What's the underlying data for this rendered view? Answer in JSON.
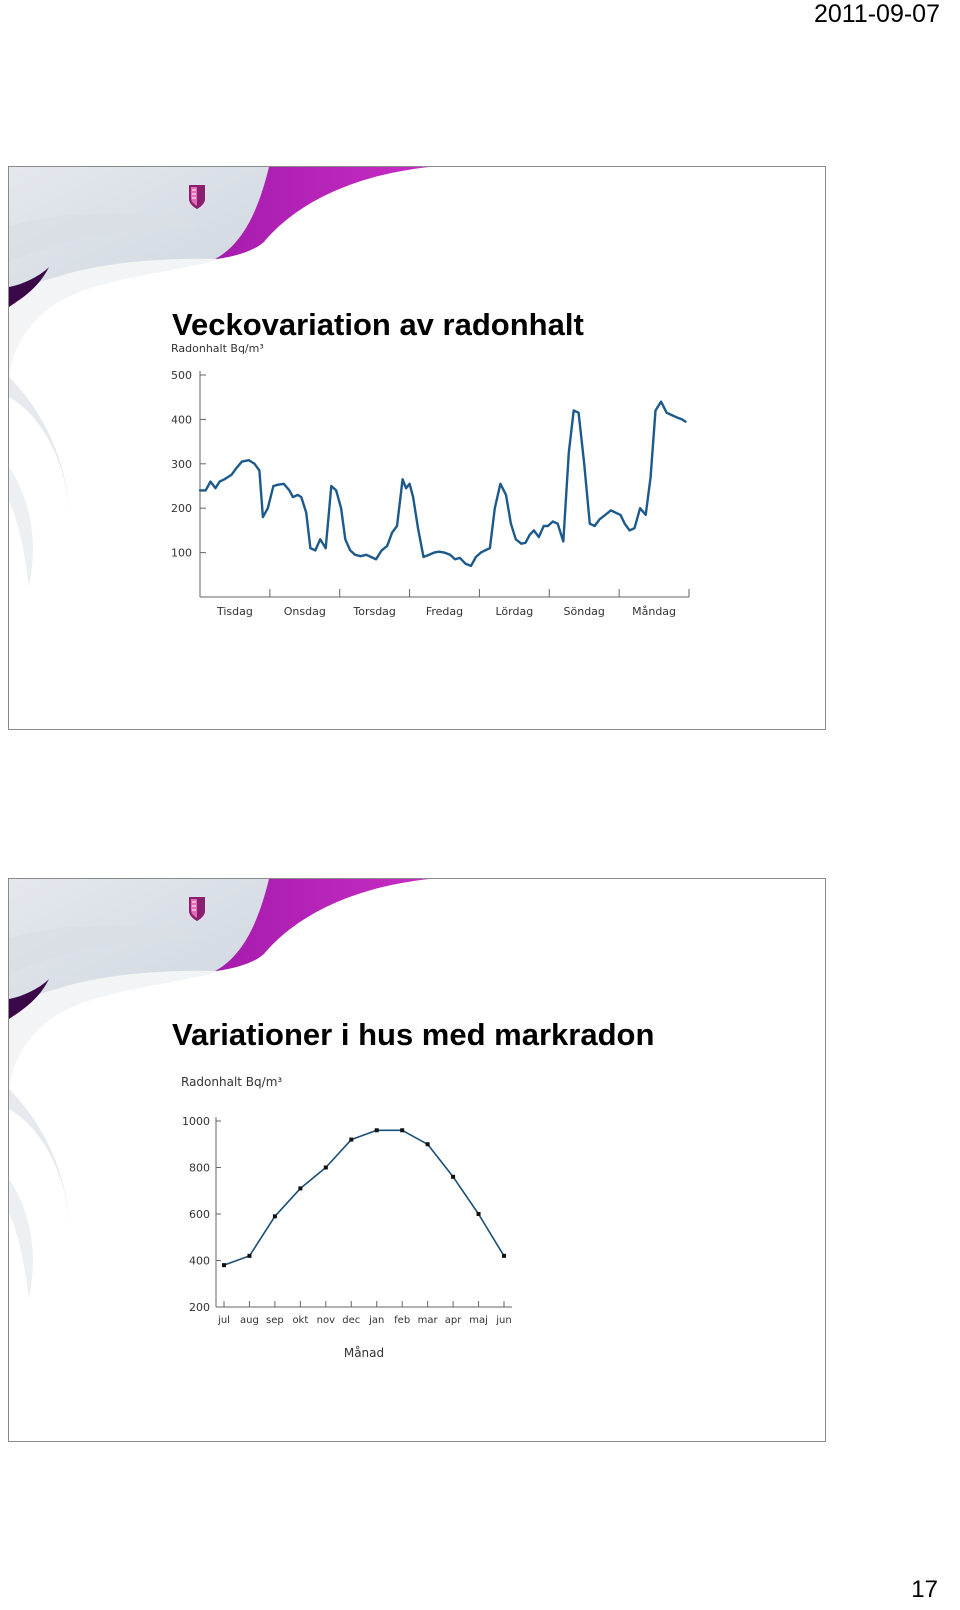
{
  "header": {
    "date": "2011-09-07"
  },
  "footer": {
    "page_number": "17"
  },
  "colors": {
    "accent_magenta": "#b219b8",
    "line_blue": "#1d5a8c",
    "dark_line": "#1b4f78",
    "marker": "#111111"
  },
  "slides": [
    {
      "title": "Veckovariation av radonhalt",
      "logo_icon": "shield-logo-icon"
    },
    {
      "title": "Variationer i hus med markradon",
      "logo_icon": "shield-logo-icon"
    }
  ],
  "chart_data": [
    {
      "type": "line",
      "title": "",
      "ylabel": "Radonhalt Bq/m³",
      "xlabel": "",
      "categories": [
        "Tisdag",
        "Onsdag",
        "Torsdag",
        "Fredag",
        "Lördag",
        "Söndag",
        "Måndag"
      ],
      "y_ticks": [
        "100",
        "200",
        "300",
        "400",
        "500"
      ],
      "ylim": [
        0,
        500
      ],
      "xlim": [
        0,
        7
      ],
      "series": [
        {
          "name": "",
          "x": [
            0,
            0.08,
            0.15,
            0.22,
            0.28,
            0.35,
            0.45,
            0.52,
            0.6,
            0.7,
            0.78,
            0.85,
            0.9,
            0.97,
            1.05,
            1.12,
            1.2,
            1.28,
            1.33,
            1.4,
            1.45,
            1.52,
            1.58,
            1.65,
            1.72,
            1.8,
            1.88,
            1.95,
            2.02,
            2.08,
            2.15,
            2.22,
            2.3,
            2.38,
            2.45,
            2.52,
            2.6,
            2.68,
            2.75,
            2.82,
            2.9,
            2.95,
            3.0,
            3.05,
            3.12,
            3.2,
            3.28,
            3.35,
            3.42,
            3.5,
            3.58,
            3.65,
            3.72,
            3.8,
            3.88,
            3.95,
            4.02,
            4.08,
            4.15,
            4.22,
            4.3,
            4.38,
            4.45,
            4.52,
            4.6,
            4.66,
            4.72,
            4.78,
            4.85,
            4.92,
            4.98,
            5.05,
            5.12,
            5.2,
            5.28,
            5.35,
            5.42,
            5.5,
            5.58,
            5.65,
            5.72,
            5.8,
            5.88,
            5.95,
            6.02,
            6.08,
            6.15,
            6.22,
            6.3,
            6.38,
            6.45,
            6.52,
            6.6,
            6.68,
            6.75,
            6.82,
            6.9,
            6.95
          ],
          "values": [
            240,
            240,
            260,
            245,
            260,
            265,
            275,
            290,
            305,
            308,
            300,
            285,
            180,
            200,
            250,
            253,
            255,
            240,
            225,
            230,
            225,
            190,
            110,
            105,
            130,
            110,
            250,
            240,
            200,
            130,
            105,
            95,
            92,
            95,
            90,
            85,
            105,
            115,
            145,
            160,
            265,
            245,
            255,
            225,
            155,
            90,
            95,
            100,
            102,
            100,
            95,
            85,
            88,
            75,
            70,
            90,
            100,
            105,
            110,
            200,
            255,
            230,
            165,
            130,
            120,
            122,
            140,
            150,
            135,
            160,
            160,
            170,
            165,
            125,
            325,
            420,
            415,
            300,
            165,
            160,
            175,
            185,
            195,
            190,
            185,
            165,
            150,
            155,
            200,
            185,
            270,
            420,
            440,
            415,
            410,
            405,
            400,
            395
          ]
        }
      ]
    },
    {
      "type": "line",
      "title": "",
      "ylabel": "Radonhalt Bq/m³",
      "xlabel": "Månad",
      "categories": [
        "jul",
        "aug",
        "sep",
        "okt",
        "nov",
        "dec",
        "jan",
        "feb",
        "mar",
        "apr",
        "maj",
        "jun"
      ],
      "y_ticks": [
        "200",
        "400",
        "600",
        "800",
        "1000"
      ],
      "ylim": [
        200,
        1000
      ],
      "series": [
        {
          "name": "",
          "values": [
            380,
            420,
            590,
            710,
            800,
            920,
            960,
            960,
            900,
            760,
            600,
            420
          ]
        }
      ]
    }
  ]
}
